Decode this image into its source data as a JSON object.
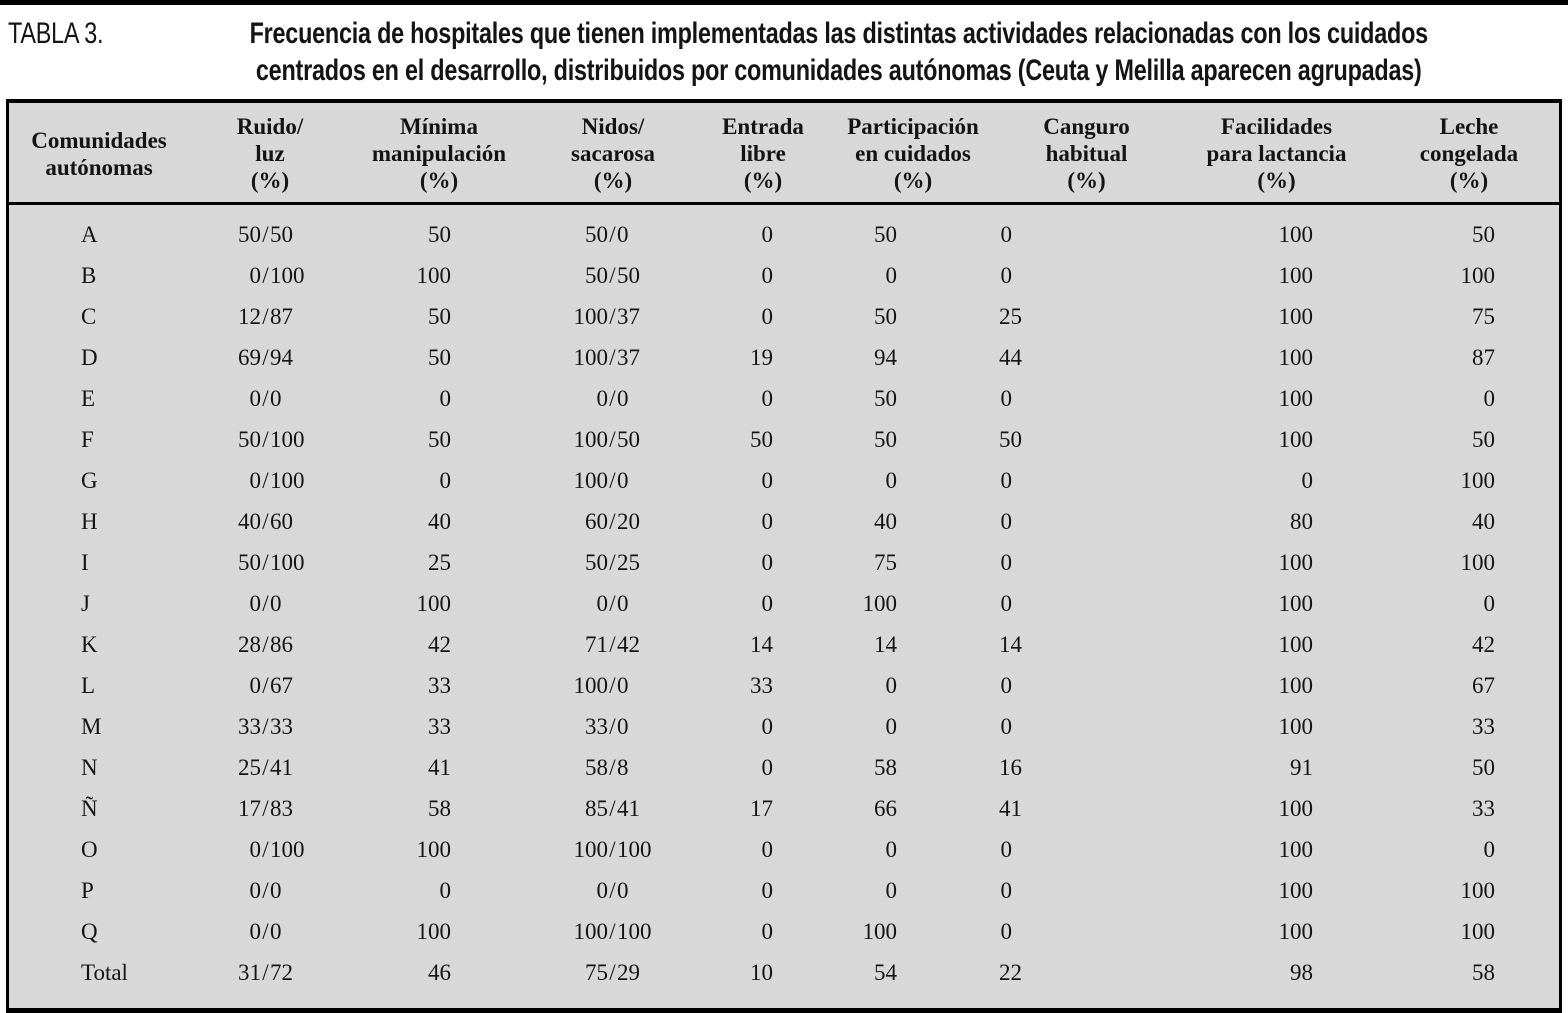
{
  "caption": {
    "label": "TABLA 3.",
    "line1": "Frecuencia de hospitales que tienen implementadas las distintas actividades relacionadas con los cuidados",
    "line2": "centrados en el desarrollo, distribuidos por comunidades autónomas (Ceuta y Melilla aparecen agrupadas)"
  },
  "chart_data": {
    "type": "table",
    "columns": [
      {
        "id": "comunidades-autonomas",
        "lines": [
          "Comunidades",
          "autónomas"
        ]
      },
      {
        "id": "ruido-luz",
        "lines": [
          "Ruido/",
          "luz",
          "(%)"
        ]
      },
      {
        "id": "minima-manipulacion",
        "lines": [
          "Mínima",
          "manipulación",
          "(%)"
        ]
      },
      {
        "id": "nidos-sacarosa",
        "lines": [
          "Nidos/",
          "sacarosa",
          "(%)"
        ]
      },
      {
        "id": "entrada-libre",
        "lines": [
          "Entrada",
          "libre",
          "(%)"
        ]
      },
      {
        "id": "participacion-en-cuidados",
        "lines": [
          "Participación",
          "en cuidados",
          "(%)"
        ]
      },
      {
        "id": "canguro-habitual",
        "lines": [
          "Canguro",
          "habitual",
          "(%)"
        ]
      },
      {
        "id": "facilidades-para-lactancia",
        "lines": [
          "Facilidades",
          "para lactancia",
          "(%)"
        ]
      },
      {
        "id": "leche-congelada",
        "lines": [
          "Leche",
          "congelada",
          "(%)"
        ]
      }
    ],
    "rows": [
      [
        "A",
        "50/50",
        "50",
        "50/0",
        "0",
        "50",
        "0",
        "100",
        "50"
      ],
      [
        "B",
        "0/100",
        "100",
        "50/50",
        "0",
        "0",
        "0",
        "100",
        "100"
      ],
      [
        "C",
        "12/87",
        "50",
        "100/37",
        "0",
        "50",
        "25",
        "100",
        "75"
      ],
      [
        "D",
        "69/94",
        "50",
        "100/37",
        "19",
        "94",
        "44",
        "100",
        "87"
      ],
      [
        "E",
        "0/0",
        "0",
        "0/0",
        "0",
        "50",
        "0",
        "100",
        "0"
      ],
      [
        "F",
        "50/100",
        "50",
        "100/50",
        "50",
        "50",
        "50",
        "100",
        "50"
      ],
      [
        "G",
        "0/100",
        "0",
        "100/0",
        "0",
        "0",
        "0",
        "0",
        "100"
      ],
      [
        "H",
        "40/60",
        "40",
        "60/20",
        "0",
        "40",
        "0",
        "80",
        "40"
      ],
      [
        "I",
        "50/100",
        "25",
        "50/25",
        "0",
        "75",
        "0",
        "100",
        "100"
      ],
      [
        "J",
        "0/0",
        "100",
        "0/0",
        "0",
        "100",
        "0",
        "100",
        "0"
      ],
      [
        "K",
        "28/86",
        "42",
        "71/42",
        "14",
        "14",
        "14",
        "100",
        "42"
      ],
      [
        "L",
        "0/67",
        "33",
        "100/0",
        "33",
        "0",
        "0",
        "100",
        "67"
      ],
      [
        "M",
        "33/33",
        "33",
        "33/0",
        "0",
        "0",
        "0",
        "100",
        "33"
      ],
      [
        "N",
        "25/41",
        "41",
        "58/8",
        "0",
        "58",
        "16",
        "91",
        "50"
      ],
      [
        "Ñ",
        "17/83",
        "58",
        "85/41",
        "17",
        "66",
        "41",
        "100",
        "33"
      ],
      [
        "O",
        "0/100",
        "100",
        "100/100",
        "0",
        "0",
        "0",
        "100",
        "0"
      ],
      [
        "P",
        "0/0",
        "0",
        "0/0",
        "0",
        "0",
        "0",
        "100",
        "100"
      ],
      [
        "Q",
        "0/0",
        "100",
        "100/100",
        "0",
        "100",
        "0",
        "100",
        "100"
      ],
      [
        "Total",
        "31/72",
        "46",
        "75/29",
        "10",
        "54",
        "22",
        "98",
        "58"
      ]
    ]
  }
}
